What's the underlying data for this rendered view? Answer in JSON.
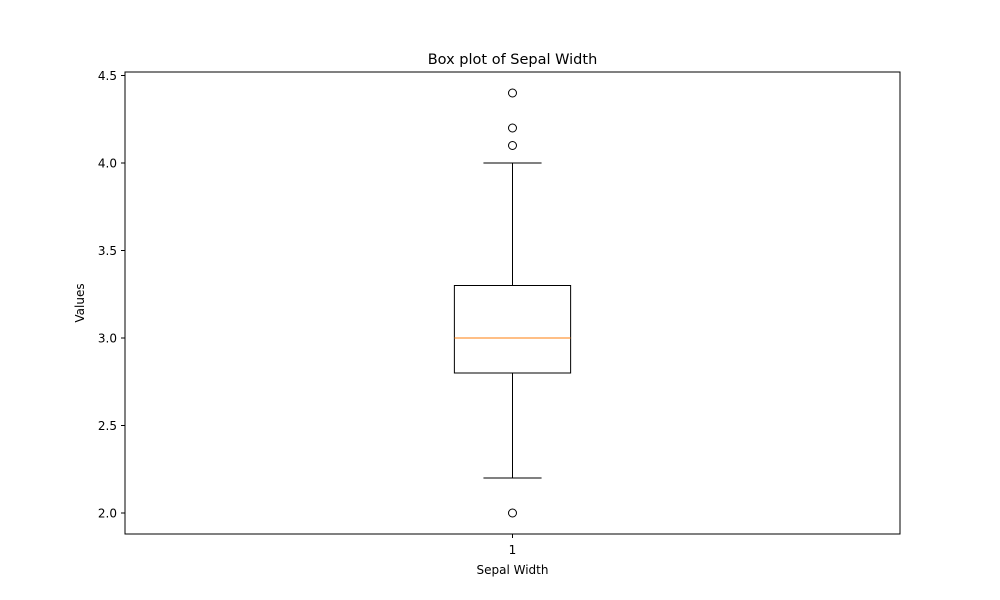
{
  "chart_data": {
    "type": "box",
    "title": "Box plot of Sepal Width",
    "xlabel": "Sepal Width",
    "ylabel": "Values",
    "categories": [
      "1"
    ],
    "ylim": [
      1.88,
      4.52
    ],
    "yticks": [
      2.0,
      2.5,
      3.0,
      3.5,
      4.0,
      4.5
    ],
    "ytick_labels": [
      "2.0",
      "2.5",
      "3.0",
      "3.5",
      "4.0",
      "4.5"
    ],
    "grid": false,
    "legend": "none",
    "boxes": [
      {
        "category": "1",
        "whisker_low": 2.2,
        "q1": 2.8,
        "median": 3.0,
        "q3": 3.3,
        "whisker_high": 4.0,
        "outliers": [
          2.0,
          4.1,
          4.2,
          4.4
        ]
      }
    ],
    "colors": {
      "box": "#000000",
      "median": "#ff7f0e",
      "outlier_edge": "#000000"
    }
  }
}
